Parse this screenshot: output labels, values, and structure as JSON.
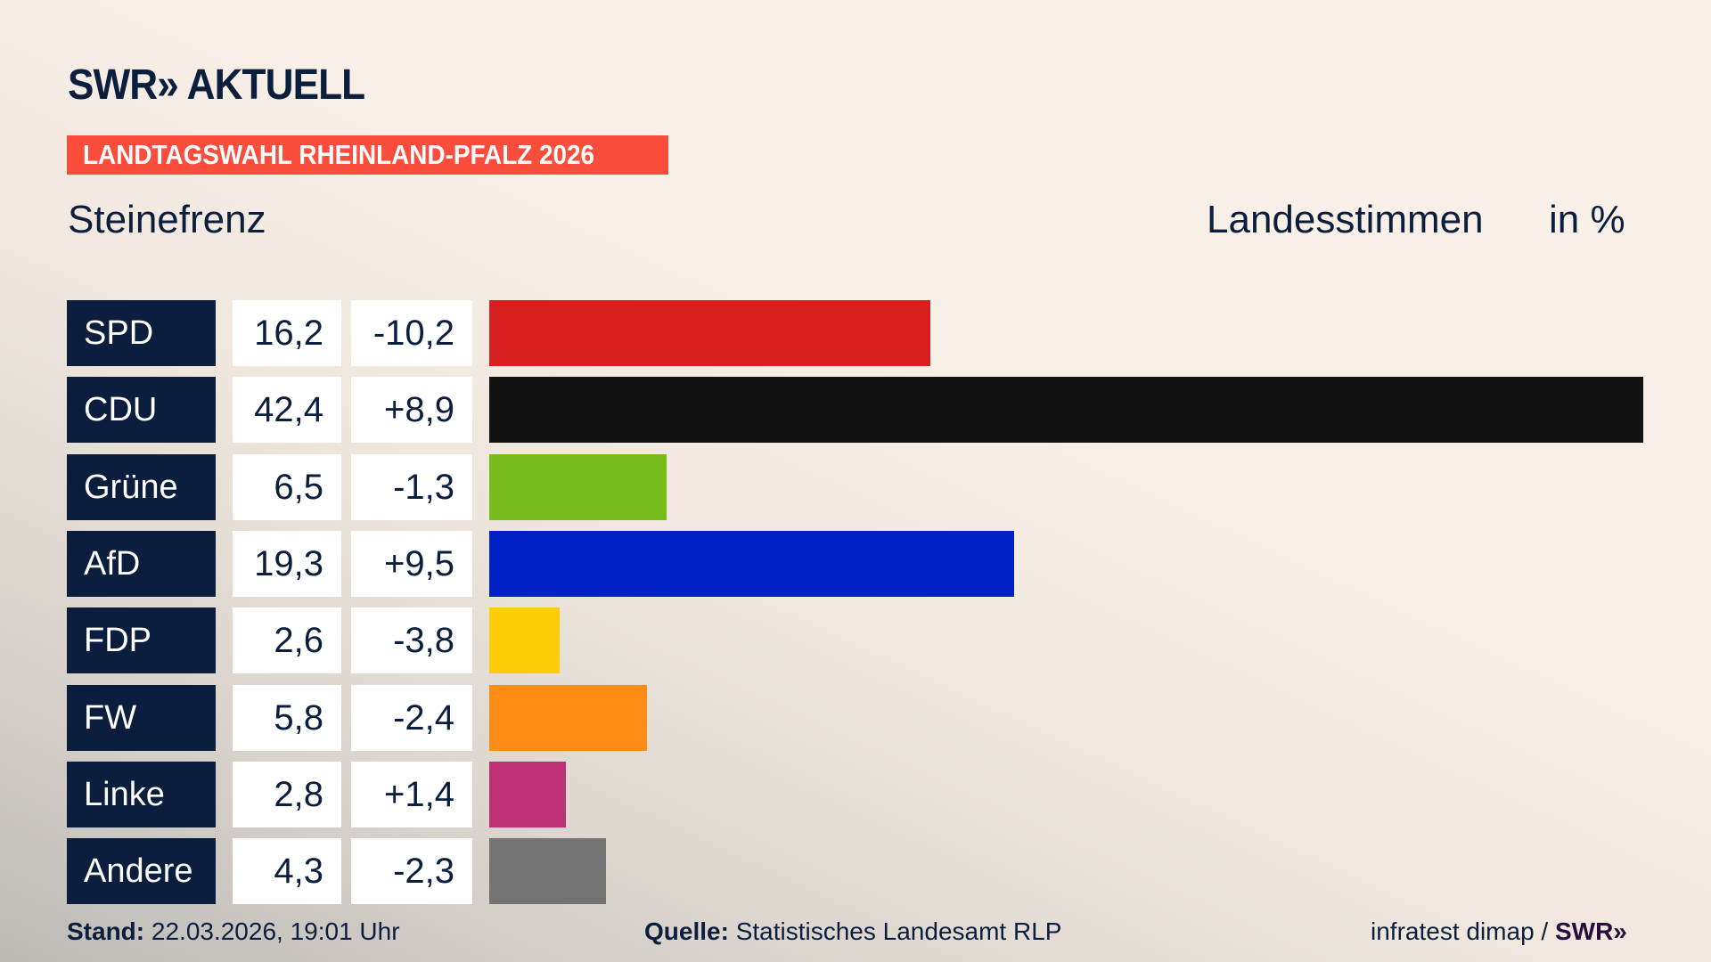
{
  "header": {
    "logo_text": "SWR» AKTUELL",
    "banner": "LANDTAGSWAHL RHEINLAND-PFALZ 2026",
    "place": "Steinefrenz",
    "measure": "Landesstimmen",
    "unit": "in %"
  },
  "chart_data": {
    "type": "bar",
    "orientation": "horizontal",
    "categories": [
      "SPD",
      "CDU",
      "Grüne",
      "AfD",
      "FDP",
      "FW",
      "Linke",
      "Andere"
    ],
    "values": [
      16.2,
      42.4,
      6.5,
      19.3,
      2.6,
      5.8,
      2.8,
      4.3
    ],
    "value_labels": [
      "16,2",
      "42,4",
      "6,5",
      "19,3",
      "2,6",
      "5,8",
      "2,8",
      "4,3"
    ],
    "diff_labels": [
      "-10,2",
      "+8,9",
      "-1,3",
      "+9,5",
      "-3,8",
      "-2,4",
      "+1,4",
      "-2,3"
    ],
    "colors": [
      "#d71f1f",
      "#121212",
      "#78bc1b",
      "#0021c6",
      "#ffcc0a",
      "#ff8c17",
      "#bd3075",
      "#737373"
    ],
    "grid": false
  },
  "footer": {
    "stand_label": "Stand:",
    "stand_value": "22.03.2026, 19:01 Uhr",
    "source_label": "Quelle:",
    "source_value": "Statistisches Landesamt RLP",
    "credit": "infratest dimap /",
    "credit_logo": "SWR»"
  }
}
